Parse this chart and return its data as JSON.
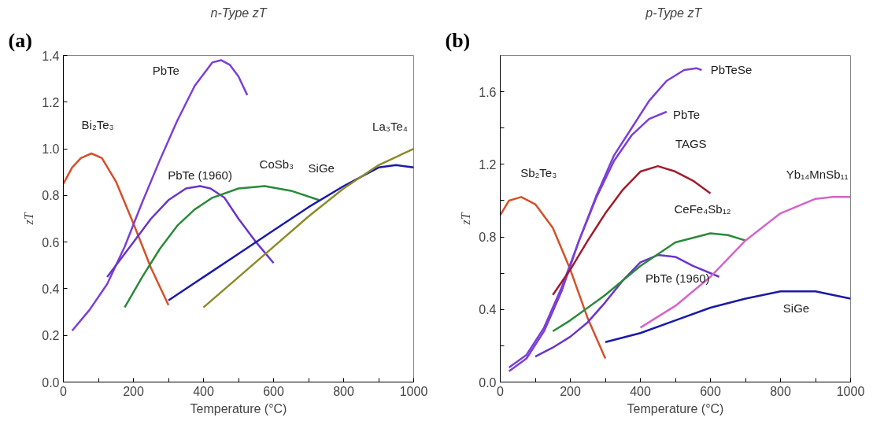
{
  "chart_data": [
    {
      "type": "line",
      "title": "n-Type zT",
      "xlabel": "Temperature (°C)",
      "ylabel": "zT",
      "annotations": [
        "(a)"
      ],
      "xlim": [
        0,
        1000
      ],
      "ylim": [
        0,
        1.4
      ],
      "xticks": [
        0,
        {
          "value": 100,
          "label": null
        },
        200,
        {
          "value": 300,
          "label": null
        },
        400,
        {
          "value": 500,
          "label": null
        },
        600,
        {
          "value": 700,
          "label": null
        },
        800,
        {
          "value": 900,
          "label": null
        },
        1000
      ],
      "yticks": [
        {
          "value": 0,
          "label": "0.0"
        },
        0.2,
        0.4,
        0.6,
        0.8,
        {
          "value": 1,
          "label": "1.0"
        },
        1.2,
        1.4
      ],
      "grid": false,
      "series": [
        {
          "name": "Bi₂Te₃",
          "color": "#d4502a",
          "x": [
            0,
            25,
            50,
            80,
            110,
            150,
            200,
            250,
            300
          ],
          "values": [
            0.85,
            0.92,
            0.96,
            0.98,
            0.96,
            0.86,
            0.68,
            0.49,
            0.33
          ]
        },
        {
          "name": "PbTe",
          "color": "#7b3fd6",
          "x": [
            25,
            75,
            125,
            175,
            225,
            275,
            325,
            375,
            425,
            450,
            475,
            500,
            525
          ],
          "values": [
            0.22,
            0.31,
            0.42,
            0.58,
            0.77,
            0.95,
            1.12,
            1.27,
            1.37,
            1.38,
            1.36,
            1.31,
            1.23
          ]
        },
        {
          "name": "PbTe (1960)",
          "color": "#6a35c8",
          "x": [
            125,
            200,
            250,
            300,
            350,
            390,
            420,
            460,
            500,
            550,
            600
          ],
          "values": [
            0.45,
            0.6,
            0.7,
            0.78,
            0.83,
            0.84,
            0.83,
            0.79,
            0.7,
            0.6,
            0.51
          ]
        },
        {
          "name": "CoSb₃",
          "color": "#2a8a3a",
          "x": [
            175,
            225,
            275,
            325,
            375,
            425,
            500,
            575,
            650,
            730
          ],
          "values": [
            0.32,
            0.45,
            0.57,
            0.67,
            0.74,
            0.79,
            0.83,
            0.84,
            0.82,
            0.78
          ]
        },
        {
          "name": "SiGe",
          "color": "#1a1aa8",
          "x": [
            300,
            400,
            500,
            600,
            700,
            800,
            900,
            950,
            1000
          ],
          "values": [
            0.35,
            0.45,
            0.55,
            0.65,
            0.75,
            0.84,
            0.92,
            0.93,
            0.92
          ]
        },
        {
          "name": "La₃Te₄",
          "color": "#8b8b2a",
          "x": [
            400,
            500,
            600,
            700,
            800,
            900,
            1000
          ],
          "values": [
            0.32,
            0.45,
            0.58,
            0.71,
            0.83,
            0.93,
            1.0
          ]
        }
      ]
    },
    {
      "type": "line",
      "title": "p-Type  zT",
      "xlabel": "Temperature (°C)",
      "ylabel": "zT",
      "annotations": [
        "(b)"
      ],
      "xlim": [
        0,
        1000
      ],
      "ylim": [
        0,
        1.8
      ],
      "xticks": [
        0,
        {
          "value": 100,
          "label": null
        },
        200,
        {
          "value": 300,
          "label": null
        },
        400,
        {
          "value": 500,
          "label": null
        },
        600,
        {
          "value": 700,
          "label": null
        },
        800,
        {
          "value": 900,
          "label": null
        },
        1000
      ],
      "yticks": [
        {
          "value": 0,
          "label": "0.0"
        },
        {
          "value": 0.2,
          "label": null
        },
        0.4,
        {
          "value": 0.6,
          "label": null
        },
        0.8,
        {
          "value": 1.0,
          "label": null
        },
        1.2,
        {
          "value": 1.4,
          "label": null
        },
        1.6
      ],
      "grid": false,
      "series": [
        {
          "name": "Sb₂Te₃",
          "color": "#d4502a",
          "x": [
            0,
            25,
            60,
            100,
            150,
            200,
            250,
            300
          ],
          "values": [
            0.92,
            1.0,
            1.02,
            0.98,
            0.85,
            0.62,
            0.35,
            0.13
          ]
        },
        {
          "name": "PbTeSe",
          "color": "#7b3fd6",
          "x": [
            25,
            75,
            125,
            175,
            225,
            275,
            325,
            375,
            425,
            475,
            525,
            560,
            575
          ],
          "values": [
            0.06,
            0.13,
            0.28,
            0.5,
            0.78,
            1.03,
            1.25,
            1.4,
            1.55,
            1.66,
            1.72,
            1.73,
            1.72
          ]
        },
        {
          "name": "PbTe",
          "color": "#7b3fd6",
          "x": [
            25,
            75,
            125,
            175,
            225,
            275,
            325,
            375,
            425,
            475
          ],
          "values": [
            0.08,
            0.15,
            0.3,
            0.52,
            0.78,
            1.02,
            1.22,
            1.36,
            1.45,
            1.49
          ]
        },
        {
          "name": "TAGS",
          "color": "#a01c2c",
          "x": [
            150,
            200,
            250,
            300,
            350,
            400,
            450,
            500,
            550,
            600
          ],
          "values": [
            0.48,
            0.62,
            0.78,
            0.93,
            1.06,
            1.16,
            1.19,
            1.16,
            1.11,
            1.04
          ]
        },
        {
          "name": "PbTe (1960)",
          "color": "#6a35c8",
          "x": [
            100,
            150,
            200,
            250,
            300,
            350,
            400,
            450,
            500,
            550,
            625
          ],
          "values": [
            0.14,
            0.19,
            0.25,
            0.33,
            0.44,
            0.56,
            0.66,
            0.7,
            0.69,
            0.64,
            0.58
          ]
        },
        {
          "name": "CeFe₄Sb₁₂",
          "color": "#2a8a3a",
          "x": [
            150,
            200,
            300,
            400,
            500,
            600,
            650,
            700
          ],
          "values": [
            0.28,
            0.34,
            0.48,
            0.64,
            0.77,
            0.82,
            0.81,
            0.78
          ]
        },
        {
          "name": "Yb₁₄MnSb₁₁",
          "color": "#d465c8",
          "x": [
            400,
            500,
            600,
            700,
            800,
            900,
            950,
            1000
          ],
          "values": [
            0.3,
            0.42,
            0.58,
            0.78,
            0.93,
            1.01,
            1.02,
            1.02
          ]
        },
        {
          "name": "SiGe",
          "color": "#1a1aa8",
          "x": [
            300,
            400,
            500,
            600,
            700,
            800,
            850,
            900,
            1000
          ],
          "values": [
            0.22,
            0.27,
            0.34,
            0.41,
            0.46,
            0.5,
            0.5,
            0.5,
            0.46
          ]
        }
      ]
    }
  ]
}
